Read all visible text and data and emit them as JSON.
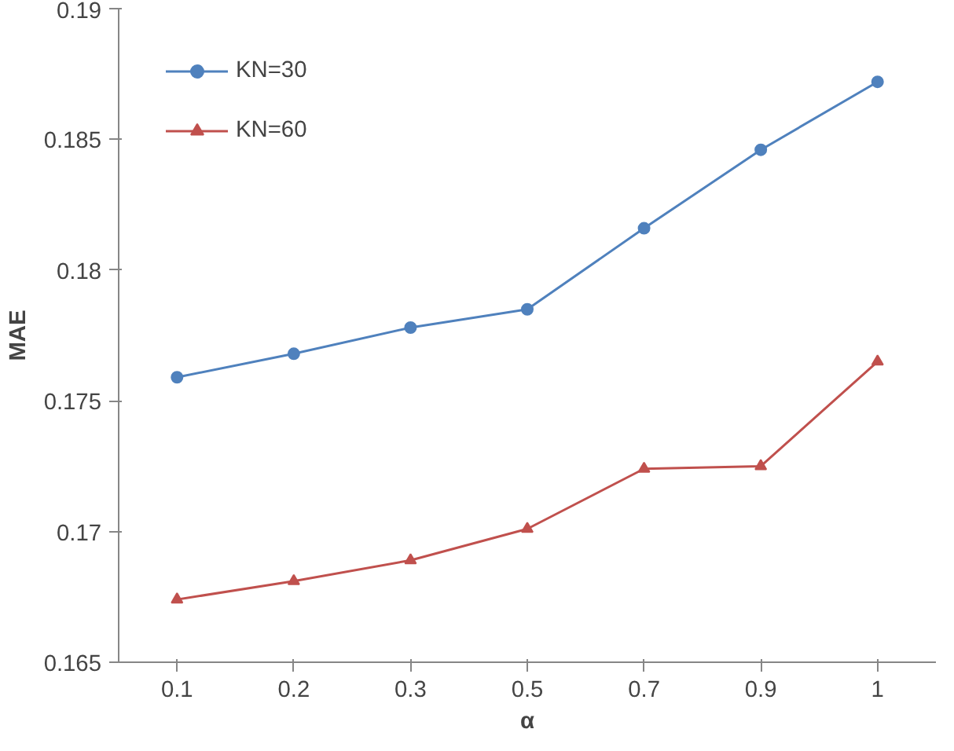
{
  "chart_data": {
    "type": "line",
    "xlabel": "α",
    "ylabel": "MAE",
    "categories": [
      "0.1",
      "0.2",
      "0.3",
      "0.5",
      "0.7",
      "0.9",
      "1"
    ],
    "series": [
      {
        "name": "KN=30",
        "color": "#4f81bd",
        "marker": "circle",
        "values": [
          0.1759,
          0.1768,
          0.1778,
          0.1785,
          0.1816,
          0.1846,
          0.1872
        ]
      },
      {
        "name": "KN=60",
        "color": "#c0504d",
        "marker": "triangle",
        "values": [
          0.1674,
          0.1681,
          0.1689,
          0.1701,
          0.1724,
          0.1725,
          0.1765
        ]
      }
    ],
    "ylim": [
      0.165,
      0.19
    ],
    "yticks": [
      0.165,
      0.17,
      0.175,
      0.18,
      0.185,
      0.19
    ],
    "grid": false,
    "legend": "top left",
    "line_style": "solid"
  }
}
